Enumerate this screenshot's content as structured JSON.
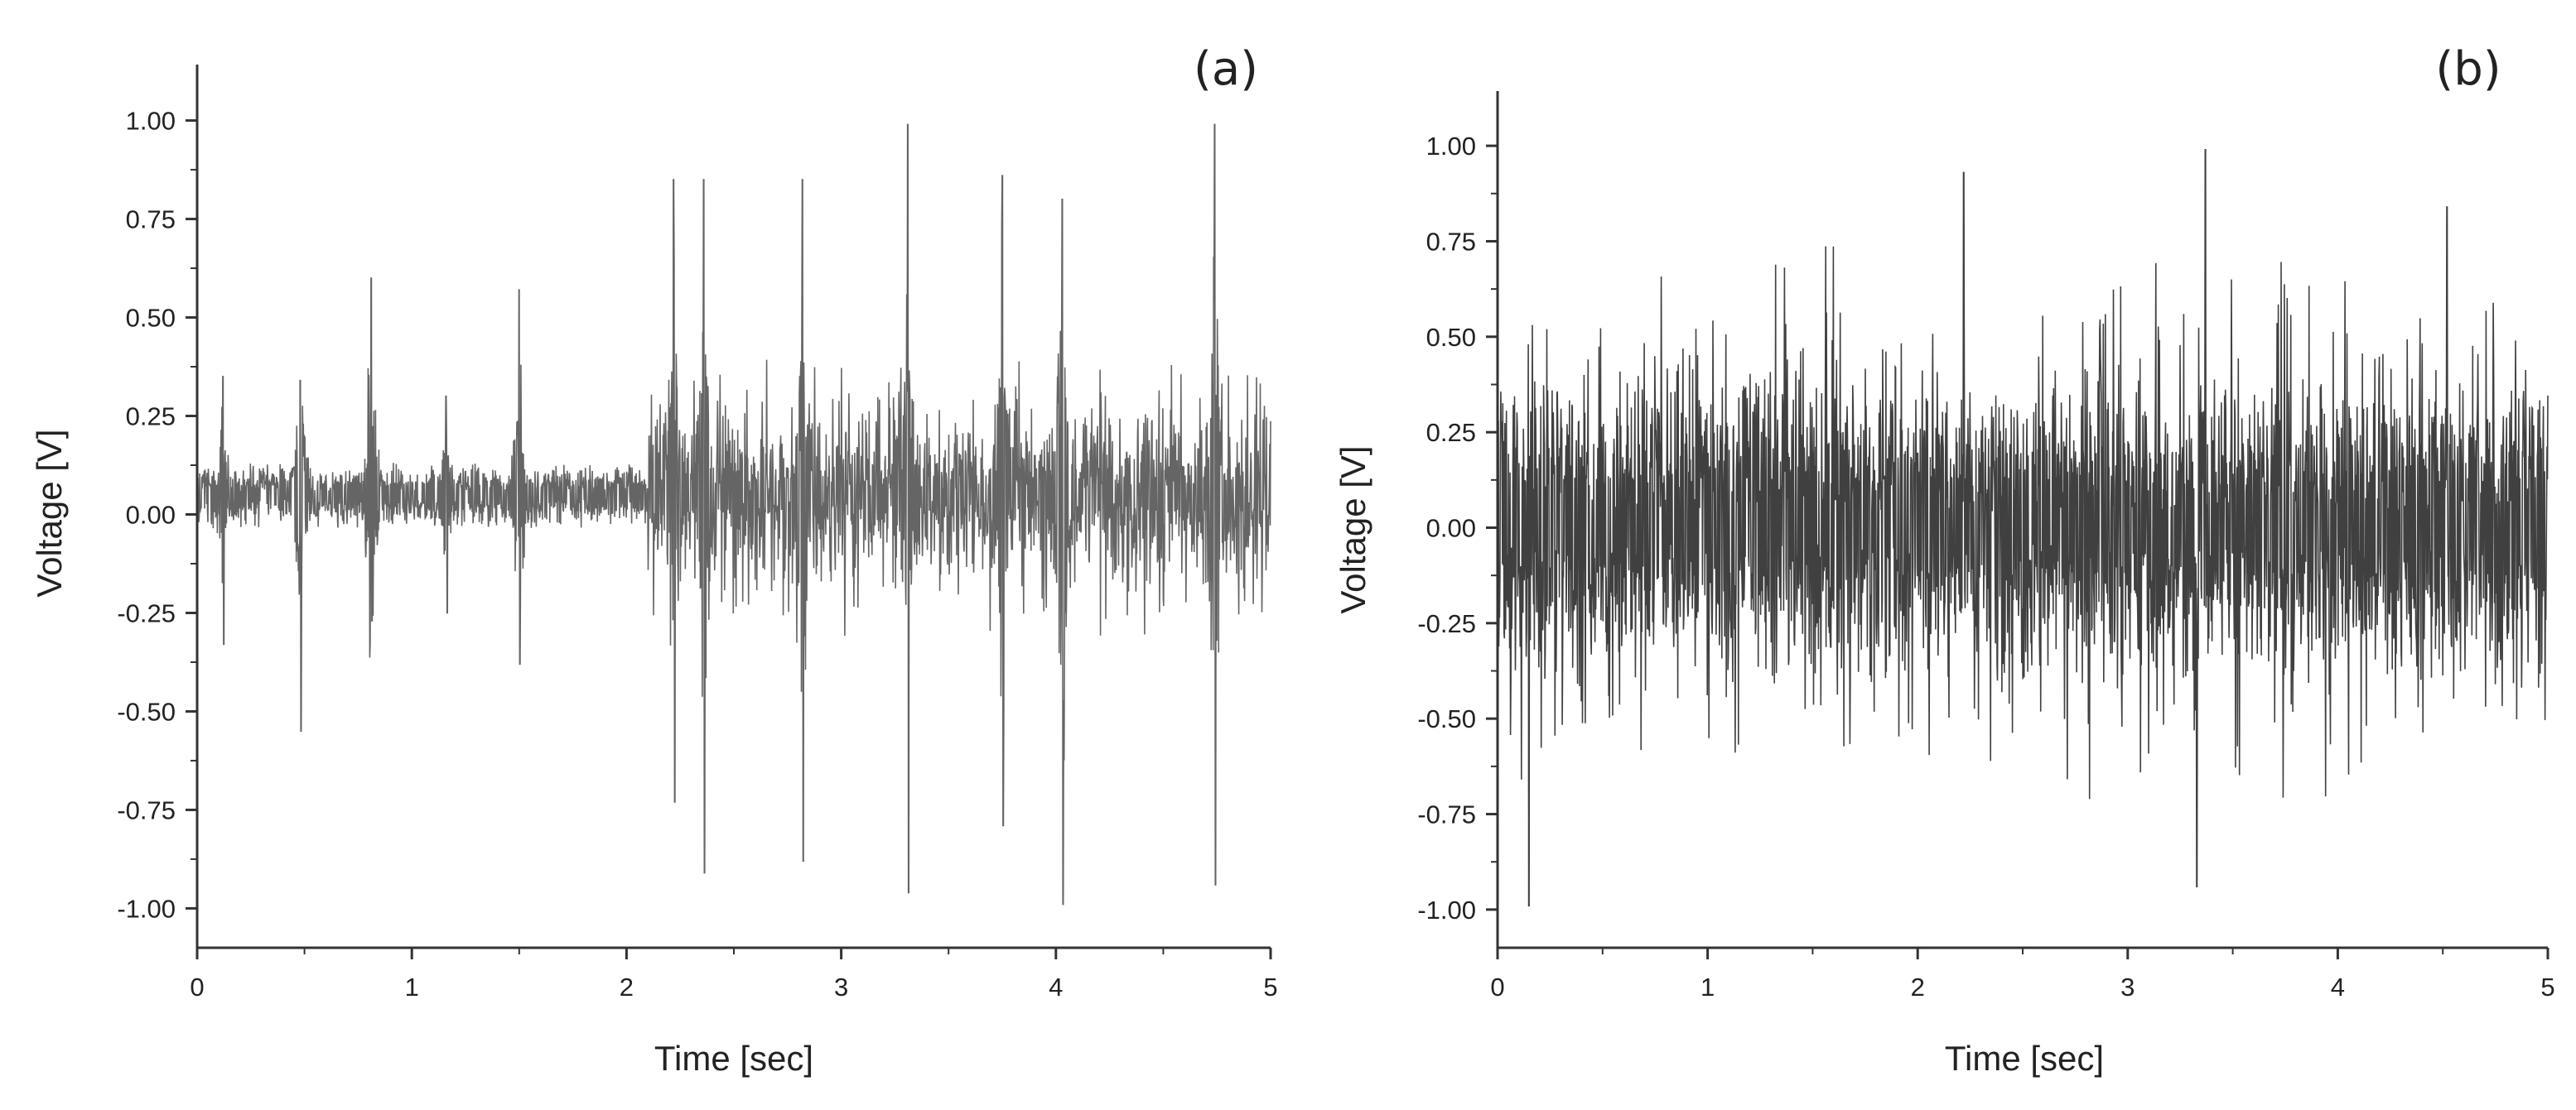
{
  "chart_data": [
    {
      "type": "line",
      "panel_label": "(a)",
      "title": "",
      "xlabel": "Time [sec]",
      "ylabel": "Voltage [V]",
      "xlim": [
        0,
        5
      ],
      "ylim": [
        -1.1,
        1.1
      ],
      "xticks": [
        0,
        1,
        2,
        3,
        4,
        5
      ],
      "yticks": [
        -1.0,
        -0.75,
        -0.5,
        -0.25,
        0.0,
        0.25,
        0.5,
        0.75,
        1.0
      ],
      "ytick_labels": [
        "-1.00",
        "-0.75",
        "-0.50",
        "-0.25",
        "0.00",
        "0.25",
        "0.50",
        "0.75",
        "1.00"
      ],
      "xtick_labels": [
        "0",
        "1",
        "2",
        "3",
        "4",
        "5"
      ],
      "grid": false,
      "line_color": "#4a4a4a",
      "series": [
        {
          "baseline_amplitude": 0.06,
          "bursts": [
            {
              "t": 0.12,
              "max": 0.35,
              "min": -0.33
            },
            {
              "t": 0.48,
              "max": 0.34,
              "min": -0.55
            },
            {
              "t": 0.81,
              "max": 0.6,
              "min": -0.27
            },
            {
              "t": 1.16,
              "max": 0.3,
              "min": -0.25
            },
            {
              "t": 1.5,
              "max": 0.57,
              "min": -0.38
            },
            {
              "t": 2.22,
              "max": 0.85,
              "min": -0.73
            },
            {
              "t": 2.36,
              "max": 0.85,
              "min": -0.91
            },
            {
              "t": 2.82,
              "max": 0.85,
              "min": -0.88
            },
            {
              "t": 3.31,
              "max": 0.99,
              "min": -0.96
            },
            {
              "t": 3.75,
              "max": 0.86,
              "min": -0.79
            },
            {
              "t": 4.03,
              "max": 0.8,
              "min": -0.99
            },
            {
              "t": 4.74,
              "max": 0.99,
              "min": -0.94
            }
          ],
          "dense_region_start": 2.1,
          "dense_region_amplitude": 0.3
        }
      ]
    },
    {
      "type": "line",
      "panel_label": "(b)",
      "title": "",
      "xlabel": "Time [sec]",
      "ylabel": "Voltage [V]",
      "xlim": [
        0,
        5
      ],
      "ylim": [
        -1.1,
        1.1
      ],
      "xticks": [
        0,
        1,
        2,
        3,
        4,
        5
      ],
      "yticks": [
        -1.0,
        -0.75,
        -0.5,
        -0.25,
        0.0,
        0.25,
        0.5,
        0.75,
        1.0
      ],
      "ytick_labels": [
        "-1.00",
        "-0.75",
        "-0.50",
        "-0.25",
        "0.00",
        "0.25",
        "0.50",
        "0.75",
        "1.00"
      ],
      "xtick_labels": [
        "0",
        "1",
        "2",
        "3",
        "4",
        "5"
      ],
      "grid": false,
      "line_color": "#1e1e1e",
      "series": [
        {
          "noise_core_amplitude": 0.3,
          "noise_peak_amplitude": 0.75,
          "extremes": [
            {
              "t": 0.15,
              "v": -0.99
            },
            {
              "t": 3.37,
              "v": 0.99
            },
            {
              "t": 3.33,
              "v": -0.94
            },
            {
              "t": 4.52,
              "v": 0.84
            },
            {
              "t": 2.22,
              "v": 0.93
            }
          ]
        }
      ]
    }
  ]
}
